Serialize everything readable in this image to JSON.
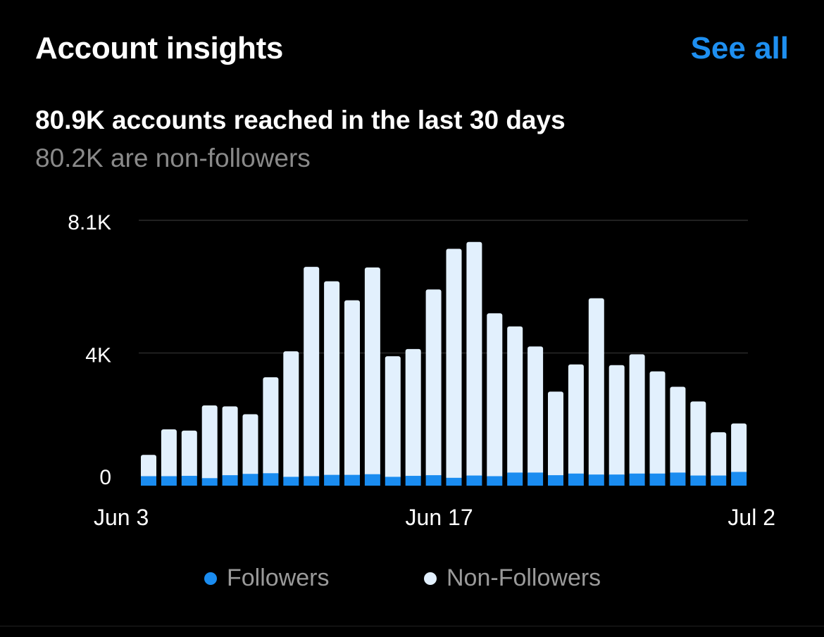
{
  "header": {
    "title": "Account insights",
    "see_all": "See all"
  },
  "summary": {
    "headline": "80.9K accounts reached in the last 30 days",
    "subline": "80.2K are non-followers"
  },
  "legend": {
    "followers": "Followers",
    "non_followers": "Non-Followers"
  },
  "colors": {
    "followers": "#1a8cf0",
    "non_followers": "#e2f0fd",
    "grid": "#2a2a2a",
    "accent": "#1e8ff0"
  },
  "chart_data": {
    "type": "bar",
    "stacked": true,
    "categories": [
      "Jun 3",
      "Jun 4",
      "Jun 5",
      "Jun 6",
      "Jun 7",
      "Jun 8",
      "Jun 9",
      "Jun 10",
      "Jun 11",
      "Jun 12",
      "Jun 13",
      "Jun 14",
      "Jun 15",
      "Jun 16",
      "Jun 17",
      "Jun 18",
      "Jun 19",
      "Jun 20",
      "Jun 21",
      "Jun 22",
      "Jun 23",
      "Jun 24",
      "Jun 25",
      "Jun 26",
      "Jun 27",
      "Jun 28",
      "Jun 29",
      "Jun 30",
      "Jul 1",
      "Jul 2"
    ],
    "x_tick_labels": [
      "Jun 3",
      "Jun 17",
      "Jul 2"
    ],
    "series": [
      {
        "name": "Followers",
        "values": [
          290,
          290,
          300,
          230,
          320,
          360,
          380,
          270,
          290,
          330,
          330,
          350,
          270,
          300,
          320,
          240,
          310,
          290,
          400,
          400,
          320,
          370,
          340,
          340,
          370,
          370,
          400,
          310,
          310,
          420
        ]
      },
      {
        "name": "Non-Followers",
        "values": [
          650,
          1430,
          1380,
          2220,
          2100,
          1820,
          2930,
          3830,
          6390,
          5910,
          5330,
          6310,
          3680,
          3870,
          5670,
          6990,
          7130,
          4970,
          4460,
          3850,
          2550,
          3330,
          5380,
          3340,
          3640,
          3120,
          2620,
          2260,
          1320,
          1480
        ]
      }
    ],
    "y_ticks": [
      "0",
      "4K",
      "8.1K"
    ],
    "y_tick_values": [
      0,
      4050,
      8100
    ],
    "ylim": [
      0,
      8100
    ],
    "legend_position": "bottom"
  }
}
